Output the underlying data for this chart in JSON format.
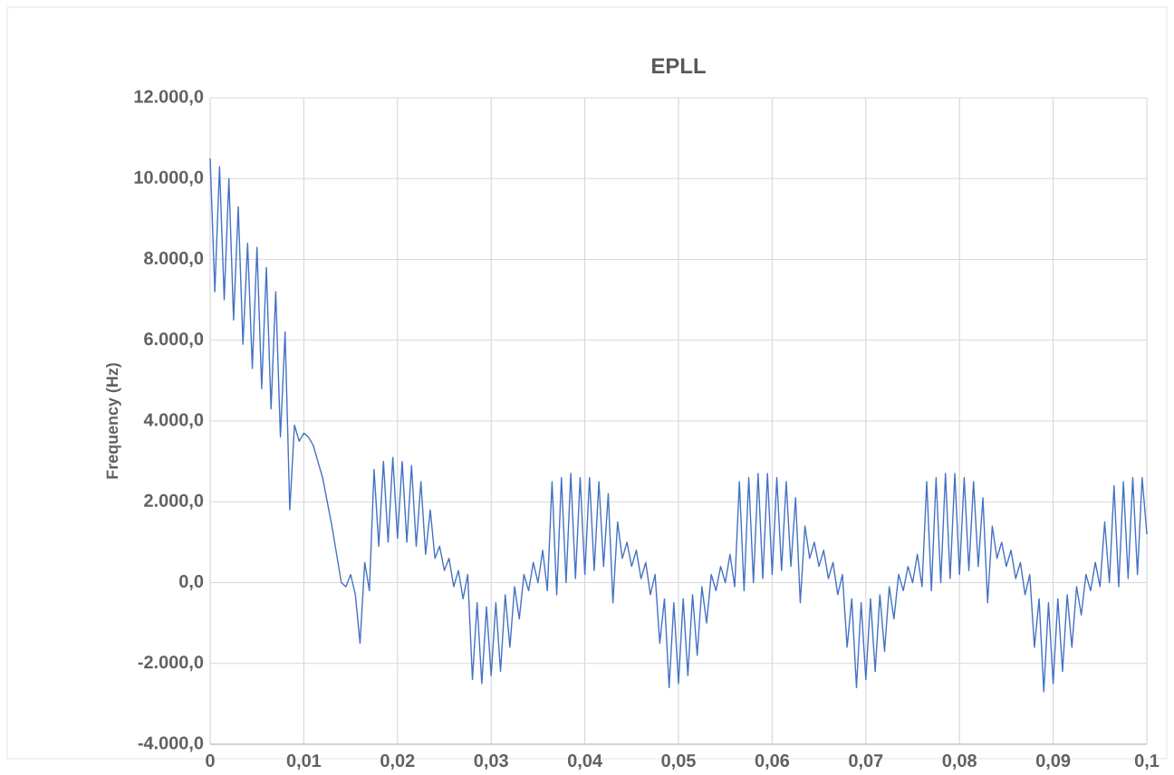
{
  "chart_data": {
    "type": "line",
    "title": "EPLL",
    "ylabel": "Frequency (Hz)",
    "x": [
      0,
      0.0005,
      0.001,
      0.0015,
      0.002,
      0.0025,
      0.003,
      0.0035,
      0.004,
      0.0045,
      0.005,
      0.0055,
      0.006,
      0.0065,
      0.007,
      0.0075,
      0.008,
      0.0085,
      0.009,
      0.0095,
      0.01,
      0.0105,
      0.011,
      0.0115,
      0.012,
      0.0125,
      0.013,
      0.0135,
      0.014,
      0.0145,
      0.015,
      0.0155,
      0.016,
      0.0165,
      0.017,
      0.0175,
      0.018,
      0.0185,
      0.019,
      0.0195,
      0.02,
      0.0205,
      0.021,
      0.0215,
      0.022,
      0.0225,
      0.023,
      0.0235,
      0.024,
      0.0245,
      0.025,
      0.0255,
      0.026,
      0.0265,
      0.027,
      0.0275,
      0.028,
      0.0285,
      0.029,
      0.0295,
      0.03,
      0.0305,
      0.031,
      0.0315,
      0.032,
      0.0325,
      0.033,
      0.0335,
      0.034,
      0.0345,
      0.035,
      0.0355,
      0.036,
      0.0365,
      0.037,
      0.0375,
      0.038,
      0.0385,
      0.039,
      0.0395,
      0.04,
      0.0405,
      0.041,
      0.0415,
      0.042,
      0.0425,
      0.043,
      0.0435,
      0.044,
      0.0445,
      0.045,
      0.0455,
      0.046,
      0.0465,
      0.047,
      0.0475,
      0.048,
      0.0485,
      0.049,
      0.0495,
      0.05,
      0.0505,
      0.051,
      0.0515,
      0.052,
      0.0525,
      0.053,
      0.0535,
      0.054,
      0.0545,
      0.055,
      0.0555,
      0.056,
      0.0565,
      0.057,
      0.0575,
      0.058,
      0.0585,
      0.059,
      0.0595,
      0.06,
      0.0605,
      0.061,
      0.0615,
      0.062,
      0.0625,
      0.063,
      0.0635,
      0.064,
      0.0645,
      0.065,
      0.0655,
      0.066,
      0.0665,
      0.067,
      0.0675,
      0.068,
      0.0685,
      0.069,
      0.0695,
      0.07,
      0.0705,
      0.071,
      0.0715,
      0.072,
      0.0725,
      0.073,
      0.0735,
      0.074,
      0.0745,
      0.075,
      0.0755,
      0.076,
      0.0765,
      0.077,
      0.0775,
      0.078,
      0.0785,
      0.079,
      0.0795,
      0.08,
      0.0805,
      0.081,
      0.0815,
      0.082,
      0.0825,
      0.083,
      0.0835,
      0.084,
      0.0845,
      0.085,
      0.0855,
      0.086,
      0.0865,
      0.087,
      0.0875,
      0.088,
      0.0885,
      0.089,
      0.0895,
      0.09,
      0.0905,
      0.091,
      0.0915,
      0.092,
      0.0925,
      0.093,
      0.0935,
      0.094,
      0.0945,
      0.095,
      0.0955,
      0.096,
      0.0965,
      0.097,
      0.0975,
      0.098,
      0.0985,
      0.099,
      0.0995,
      0.1
    ],
    "series": [
      {
        "color": "#4472c4",
        "values": [
          10500,
          7200,
          10300,
          7000,
          10000,
          6500,
          9300,
          5900,
          8400,
          5300,
          8300,
          4800,
          7800,
          4300,
          7200,
          3600,
          6200,
          1800,
          3900,
          3500,
          3700,
          3600,
          3400,
          3000,
          2600,
          2000,
          1400,
          700,
          0,
          -100,
          200,
          -300,
          -1500,
          500,
          -200,
          2800,
          900,
          3000,
          1000,
          3100,
          1100,
          3000,
          1000,
          2900,
          900,
          2500,
          700,
          1800,
          600,
          900,
          300,
          600,
          -100,
          300,
          -400,
          200,
          -2400,
          -500,
          -2500,
          -600,
          -2300,
          -500,
          -2200,
          -300,
          -1600,
          -100,
          -900,
          200,
          -200,
          500,
          0,
          800,
          -200,
          2500,
          -300,
          2600,
          0,
          2700,
          100,
          2600,
          200,
          2600,
          300,
          2500,
          400,
          2200,
          -500,
          1500,
          600,
          1000,
          400,
          800,
          100,
          500,
          -300,
          200,
          -1500,
          -400,
          -2600,
          -500,
          -2500,
          -400,
          -2300,
          -300,
          -1800,
          -100,
          -1000,
          200,
          -200,
          400,
          0,
          700,
          -100,
          2500,
          -200,
          2600,
          0,
          2700,
          100,
          2700,
          200,
          2600,
          300,
          2500,
          400,
          2100,
          -500,
          1400,
          600,
          1000,
          400,
          800,
          100,
          500,
          -300,
          200,
          -1600,
          -400,
          -2600,
          -500,
          -2400,
          -400,
          -2200,
          -300,
          -1700,
          -100,
          -900,
          200,
          -200,
          400,
          0,
          700,
          -100,
          2500,
          -200,
          2600,
          0,
          2700,
          100,
          2700,
          200,
          2600,
          300,
          2500,
          400,
          2100,
          -500,
          1400,
          600,
          1000,
          400,
          800,
          100,
          500,
          -300,
          200,
          -1600,
          -400,
          -2700,
          -500,
          -2500,
          -400,
          -2200,
          -300,
          -1600,
          -100,
          -800,
          200,
          -200,
          500,
          -100,
          1500,
          0,
          2400,
          -100,
          2500,
          100,
          2600,
          200,
          2600,
          1200
        ]
      }
    ],
    "xlim": [
      0,
      0.1
    ],
    "ylim": [
      -4000,
      12000
    ],
    "xticks": [
      0,
      {
        "value": 0.01,
        "label": "0,01"
      },
      {
        "value": 0.02,
        "label": "0,02"
      },
      {
        "value": 0.03,
        "label": "0,03"
      },
      {
        "value": 0.04,
        "label": "0,04"
      },
      {
        "value": 0.05,
        "label": "0,05"
      },
      {
        "value": 0.06,
        "label": "0,06"
      },
      {
        "value": 0.07,
        "label": "0,07"
      },
      {
        "value": 0.08,
        "label": "0,08"
      },
      {
        "value": 0.09,
        "label": "0,09"
      },
      {
        "value": 0.1,
        "label": "0,1"
      }
    ],
    "yticks": [
      {
        "value": -4000,
        "label": "-4.000,0"
      },
      {
        "value": -2000,
        "label": "-2.000,0"
      },
      {
        "value": 0,
        "label": "0,0"
      },
      {
        "value": 2000,
        "label": "2.000,0"
      },
      {
        "value": 4000,
        "label": "4.000,0"
      },
      {
        "value": 6000,
        "label": "6.000,0"
      },
      {
        "value": 8000,
        "label": "8.000,0"
      },
      {
        "value": 10000,
        "label": "10.000,0"
      },
      {
        "value": 12000,
        "label": "12.000,0"
      }
    ],
    "grid": true
  }
}
